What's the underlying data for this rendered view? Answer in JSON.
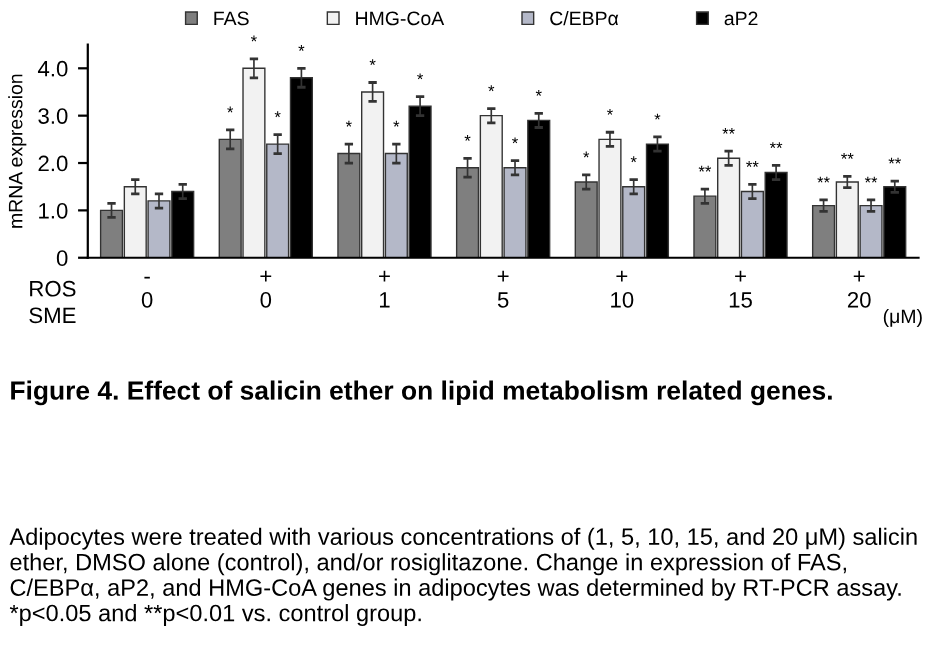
{
  "chart_data": {
    "type": "bar",
    "title": "Figure 4. Effect of salicin ether on lipid metabolism related genes.",
    "ylabel": "mRNA expression",
    "categories": [
      "-\n0",
      "+\n0",
      "+\n1",
      "+\n5",
      "+\n10",
      "+\n15",
      "+\n20"
    ],
    "series": [
      {
        "name": "FAS",
        "color": "#7f7f7f",
        "values": [
          1.0,
          2.5,
          2.2,
          1.9,
          1.6,
          1.3,
          1.1
        ],
        "errors": [
          0.15,
          0.2,
          0.2,
          0.2,
          0.15,
          0.15,
          0.12
        ],
        "value_labels": [
          null,
          "*",
          "*",
          "*",
          "*",
          "**",
          "**"
        ]
      },
      {
        "name": "HMG-CoA",
        "color": "#f2f2f2",
        "values": [
          1.5,
          4.0,
          3.5,
          3.0,
          2.5,
          2.1,
          1.6
        ],
        "errors": [
          0.15,
          0.2,
          0.2,
          0.15,
          0.15,
          0.15,
          0.12
        ],
        "value_labels": [
          null,
          "*",
          "*",
          "*",
          "*",
          "**",
          "**"
        ]
      },
      {
        "name": "C/EBPα",
        "color": "#b4b8c8",
        "values": [
          1.2,
          2.4,
          2.2,
          1.9,
          1.5,
          1.4,
          1.1
        ],
        "errors": [
          0.15,
          0.2,
          0.2,
          0.15,
          0.15,
          0.15,
          0.12
        ],
        "value_labels": [
          null,
          "*",
          "*",
          "*",
          "*",
          "**",
          "**"
        ]
      },
      {
        "name": "aP2",
        "color": "#000000",
        "values": [
          1.4,
          3.8,
          3.2,
          2.9,
          2.4,
          1.8,
          1.5
        ],
        "errors": [
          0.15,
          0.2,
          0.2,
          0.15,
          0.15,
          0.15,
          0.12
        ],
        "value_labels": [
          null,
          "*",
          "*",
          "*",
          "*",
          "**",
          "**"
        ]
      }
    ],
    "ylim": [
      0,
      4.5
    ],
    "yticks": [
      0,
      {
        "value": 1,
        "label": "1.0"
      },
      {
        "value": 2,
        "label": "2.0"
      },
      {
        "value": 3,
        "label": "3.0"
      },
      {
        "value": 4,
        "label": "4.0"
      }
    ],
    "grid": false,
    "legend": "top",
    "annotations": [
      "ROS",
      "SME",
      "(μM)",
      "Adipocytes were treated with various concentrations of (1, 5, 10, 15, and 20 μM) salicin ether, DMSO alone (control), and/or rosiglitazone. Change in expression of FAS, C/EBPα, aP2, and HMG-CoA genes in adipocytes was determined by RT-PCR assay. *p<0.05 and **p<0.01 vs. control group."
    ]
  }
}
